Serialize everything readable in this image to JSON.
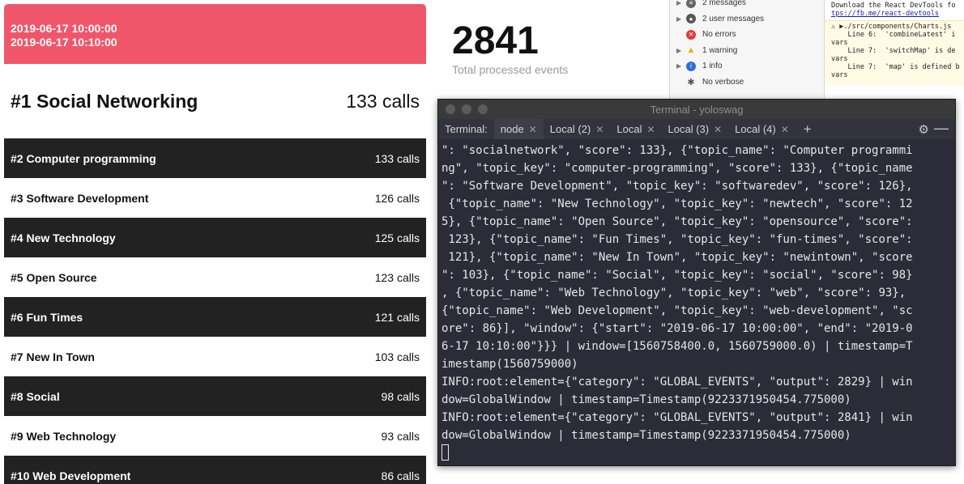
{
  "header": {
    "start": "2019-06-17 10:00:00",
    "end": "2019-06-17 10:10:00"
  },
  "topics": [
    {
      "rank_name": "#1 Social Networking",
      "calls": "133 calls"
    },
    {
      "rank_name": "#2 Computer programming",
      "calls": "133 calls"
    },
    {
      "rank_name": "#3 Software Development",
      "calls": "126 calls"
    },
    {
      "rank_name": "#4 New Technology",
      "calls": "125 calls"
    },
    {
      "rank_name": "#5 Open Source",
      "calls": "123 calls"
    },
    {
      "rank_name": "#6 Fun Times",
      "calls": "121 calls"
    },
    {
      "rank_name": "#7 New In Town",
      "calls": "103 calls"
    },
    {
      "rank_name": "#8 Social",
      "calls": "98 calls"
    },
    {
      "rank_name": "#9 Web Technology",
      "calls": "93 calls"
    },
    {
      "rank_name": "#10 Web Development",
      "calls": "86 calls"
    }
  ],
  "counter": {
    "value": "2841",
    "label": "Total processed events"
  },
  "devtools": {
    "sidebar": [
      {
        "label": "2 messages",
        "icon": "list-icon",
        "arrow": "▶"
      },
      {
        "label": "2 user messages",
        "icon": "user-icon",
        "arrow": "▶"
      },
      {
        "label": "No errors",
        "icon": "error-icon",
        "arrow": ""
      },
      {
        "label": "1 warning",
        "icon": "warning-icon",
        "arrow": "▶"
      },
      {
        "label": "1 info",
        "icon": "info-icon",
        "arrow": "▶"
      },
      {
        "label": "No verbose",
        "icon": "bug-icon",
        "arrow": ""
      }
    ],
    "console_line1": "Download the React DevTools fo",
    "console_link": "tps://fb.me/react-devtools",
    "warn_lines": [
      "⚠ ▶./src/components/Charts.js",
      "    Line 6:  'combineLatest' i",
      "vars",
      "    Line 7:  'switchMap' is de",
      "vars",
      "    Line 7:  'map' is defined b",
      "vars"
    ]
  },
  "terminal": {
    "title": "Terminal - yoloswag",
    "tabs": [
      {
        "label": "Terminal:",
        "closable": false
      },
      {
        "label": "node",
        "closable": true
      },
      {
        "label": "Local (2)",
        "closable": true
      },
      {
        "label": "Local",
        "closable": true
      },
      {
        "label": "Local (3)",
        "closable": true
      },
      {
        "label": "Local (4)",
        "closable": true
      }
    ],
    "lines": [
      "\": \"socialnetwork\", \"score\": 133}, {\"topic_name\": \"Computer programmi",
      "ng\", \"topic_key\": \"computer-programming\", \"score\": 133}, {\"topic_name",
      "\": \"Software Development\", \"topic_key\": \"softwaredev\", \"score\": 126},",
      " {\"topic_name\": \"New Technology\", \"topic_key\": \"newtech\", \"score\": 12",
      "5}, {\"topic_name\": \"Open Source\", \"topic_key\": \"opensource\", \"score\":",
      " 123}, {\"topic_name\": \"Fun Times\", \"topic_key\": \"fun-times\", \"score\":",
      " 121}, {\"topic_name\": \"New In Town\", \"topic_key\": \"newintown\", \"score",
      "\": 103}, {\"topic_name\": \"Social\", \"topic_key\": \"social\", \"score\": 98}",
      ", {\"topic_name\": \"Web Technology\", \"topic_key\": \"web\", \"score\": 93},",
      "{\"topic_name\": \"Web Development\", \"topic_key\": \"web-development\", \"sc",
      "ore\": 86}], \"window\": {\"start\": \"2019-06-17 10:00:00\", \"end\": \"2019-0",
      "6-17 10:10:00\"}}} | window=[1560758400.0, 1560759000.0) | timestamp=T",
      "imestamp(1560759000)",
      "INFO:root:element={\"category\": \"GLOBAL_EVENTS\", \"output\": 2829} | win",
      "dow=GlobalWindow | timestamp=Timestamp(9223371950454.775000)",
      "INFO:root:element={\"category\": \"GLOBAL_EVENTS\", \"output\": 2841} | win",
      "dow=GlobalWindow | timestamp=Timestamp(9223371950454.775000)"
    ]
  }
}
